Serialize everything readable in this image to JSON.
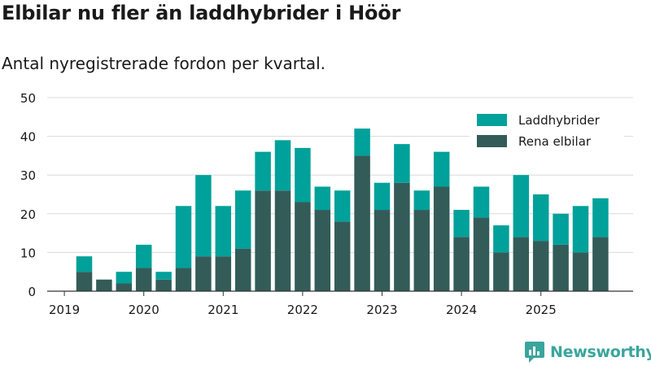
{
  "title": "Elbilar nu fler än laddhybrider i Höör",
  "subtitle": "Antal nyregistrerade fordon per kvartal.",
  "brand": "Newsworthy",
  "colors": {
    "hybrid": "#00a19a",
    "electric": "#335c59",
    "grid": "#d9d9d9",
    "axis": "#333333",
    "brand": "#3aa59c"
  },
  "chart_data": {
    "type": "bar",
    "stacked": true,
    "title": "Elbilar nu fler än laddhybrider i Höör",
    "subtitle": "Antal nyregistrerade fordon per kvartal.",
    "ylim": [
      0,
      50
    ],
    "yticks": [
      0,
      10,
      20,
      30,
      40,
      50
    ],
    "xticks": [
      "2019",
      "2020",
      "2021",
      "2022",
      "2023",
      "2024",
      "2025"
    ],
    "legend_position": "top-right",
    "categories": [
      "2019 Q2",
      "2019 Q3",
      "2019 Q4",
      "2020 Q1",
      "2020 Q2",
      "2020 Q3",
      "2020 Q4",
      "2021 Q1",
      "2021 Q2",
      "2021 Q3",
      "2021 Q4",
      "2022 Q1",
      "2022 Q2",
      "2022 Q3",
      "2022 Q4",
      "2023 Q1",
      "2023 Q2",
      "2023 Q3",
      "2023 Q4",
      "2024 Q1",
      "2024 Q2",
      "2024 Q3",
      "2024 Q4",
      "2025 Q1",
      "2025 Q2",
      "2025 Q3",
      "2025 Q4"
    ],
    "series": [
      {
        "name": "Rena elbilar",
        "values": [
          5,
          3,
          2,
          6,
          3,
          6,
          9,
          9,
          11,
          26,
          26,
          23,
          21,
          18,
          35,
          21,
          28,
          21,
          27,
          14,
          19,
          10,
          14,
          13,
          12,
          10,
          14
        ]
      },
      {
        "name": "Laddhybrider",
        "values": [
          4,
          0,
          3,
          6,
          2,
          16,
          21,
          13,
          15,
          10,
          13,
          14,
          6,
          8,
          7,
          7,
          10,
          5,
          9,
          7,
          8,
          7,
          16,
          12,
          8,
          12,
          10
        ]
      }
    ]
  }
}
